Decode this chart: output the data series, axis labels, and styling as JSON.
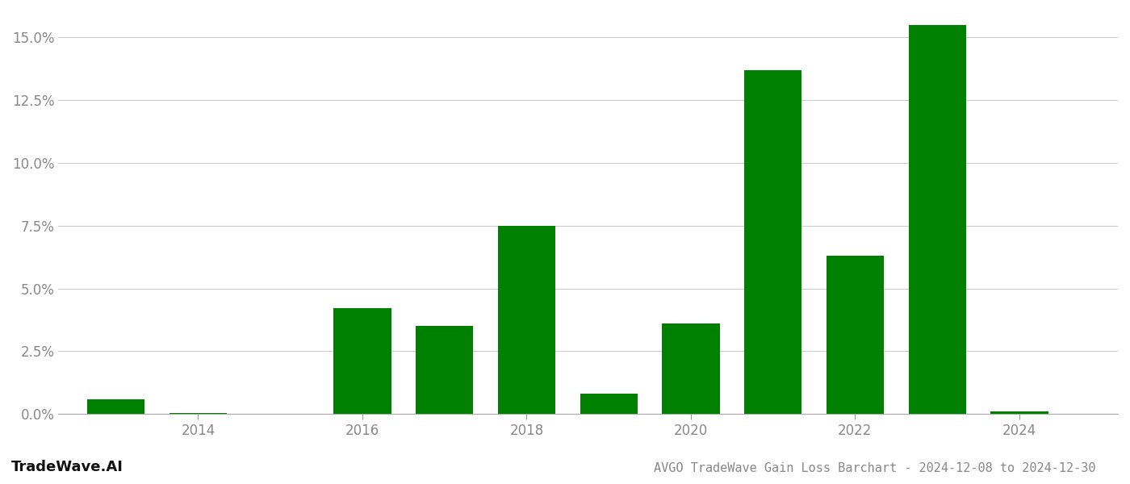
{
  "years": [
    2013,
    2014,
    2015,
    2016,
    2017,
    2018,
    2019,
    2020,
    2021,
    2022,
    2023,
    2024
  ],
  "values": [
    0.006,
    0.0004,
    0.0,
    0.042,
    0.035,
    0.075,
    0.008,
    0.036,
    0.137,
    0.063,
    0.155,
    0.001
  ],
  "bar_color": "#008000",
  "background_color": "#ffffff",
  "title": "AVGO TradeWave Gain Loss Barchart - 2024-12-08 to 2024-12-30",
  "watermark": "TradeWave.AI",
  "ylim_min": 0.0,
  "ylim_max": 0.16,
  "yticks": [
    0.0,
    0.025,
    0.05,
    0.075,
    0.1,
    0.125,
    0.15
  ],
  "xticks": [
    2014,
    2016,
    2018,
    2020,
    2022,
    2024
  ],
  "grid_color": "#cccccc",
  "tick_label_color": "#888888",
  "title_color": "#888888",
  "watermark_color": "#111111",
  "bar_width": 0.7,
  "title_fontsize": 11,
  "tick_fontsize": 12,
  "watermark_fontsize": 13
}
